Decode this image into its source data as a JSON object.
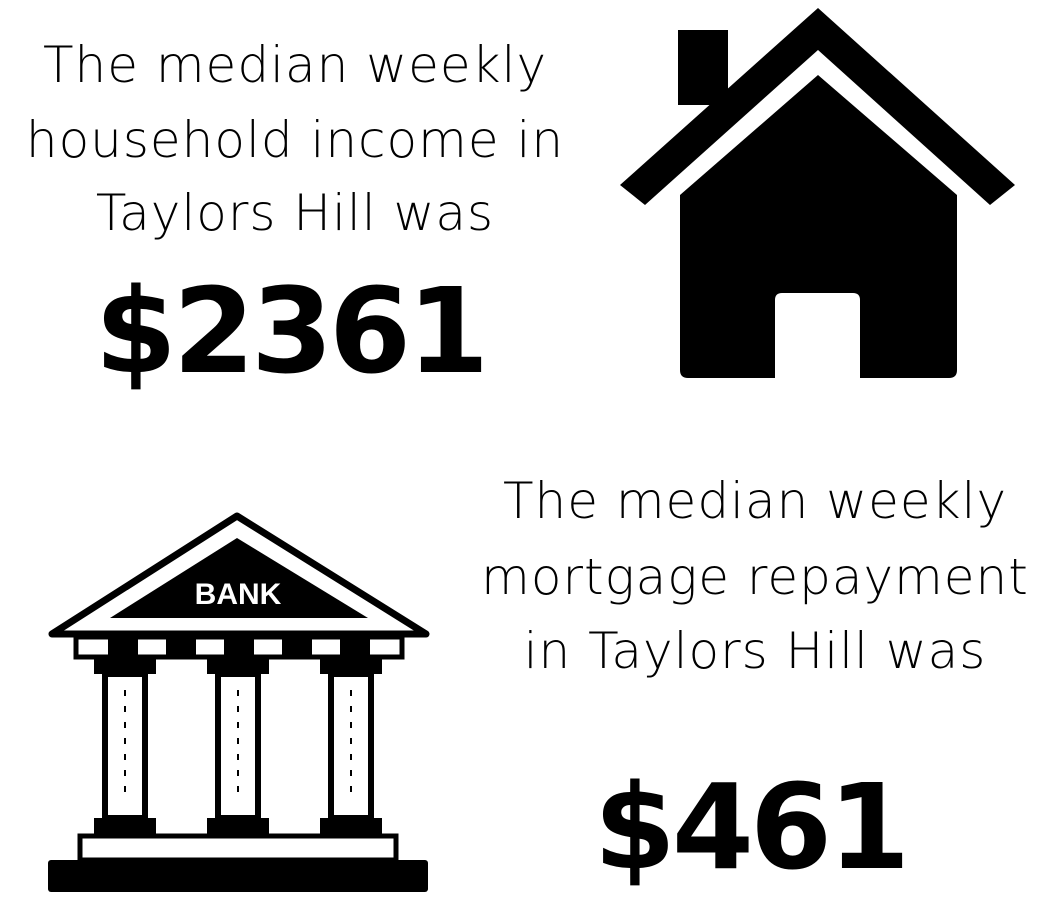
{
  "income": {
    "lines": [
      "The median weekly",
      "household income in",
      "Taylors Hill was"
    ],
    "value": "$2361"
  },
  "mortgage": {
    "lines": [
      "The median weekly",
      "mortgage repayment",
      "in Taylors Hill was"
    ],
    "value": "$461"
  },
  "bank_icon": {
    "label": "BANK"
  }
}
